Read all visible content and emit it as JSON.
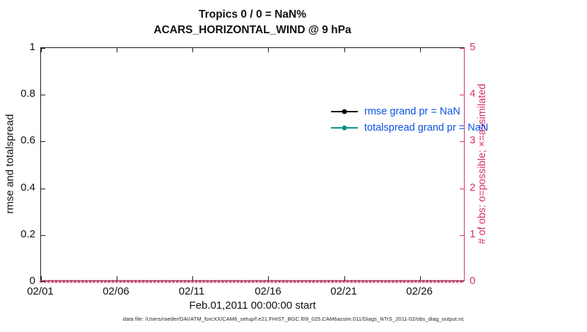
{
  "chart_data": {
    "type": "line",
    "title": "Tropics 0 / 0 = NaN%",
    "subtitle": "ACARS_HORIZONTAL_WIND @ 9 hPa",
    "xlabel": "Feb.01,2011 00:00:00 start",
    "ylabel_left": "rmse and totalspread",
    "ylabel_right": "# of obs: o=possible; ×=assimilated",
    "x_ticks": [
      "02/01",
      "02/06",
      "02/11",
      "02/16",
      "02/21",
      "02/26"
    ],
    "x_range_days": 28,
    "x_tick_interval_days": 5,
    "y_ticks_left": [
      "0",
      "0.2",
      "0.4",
      "0.6",
      "0.8",
      "1"
    ],
    "ylim_left": [
      0,
      1
    ],
    "y_ticks_right": [
      "0",
      "1",
      "2",
      "3",
      "4",
      "5"
    ],
    "ylim_right": [
      0,
      5
    ],
    "grid": false,
    "legend_position": "upper-center-right, no box",
    "series": [
      {
        "name": "rmse",
        "grand_mean": "NaN",
        "color": "#000000",
        "values": []
      },
      {
        "name": "totalspread",
        "grand_mean": "NaN",
        "color": "#0d9488",
        "values": []
      }
    ],
    "obs_markers": {
      "description": "observation counts plotted on right axis; possible (o) and assimilated (x) all equal 0 along the baseline",
      "value": 0,
      "count": 112,
      "glyph": "*",
      "color": "#d6336c"
    }
  },
  "legend": {
    "items": [
      {
        "label": "rmse grand pr = NaN",
        "line_color": "#000000"
      },
      {
        "label": "totalspread grand pr = NaN",
        "line_color": "#0d9488"
      }
    ],
    "text_color": "#0b52e0"
  },
  "footer": {
    "text": "data file: /Users/raeder/DAI/ATM_forcXX/CAM6_setup/f.e21.FHIST_BGC.f09_025.CAM6assim.011/Diags_NTrS_2011-02/obs_diag_output.nc"
  },
  "colors": {
    "axis": "#1a1a1a",
    "right_axis": "#d6336c",
    "legend_text": "#0b52e0",
    "teal": "#0d9488"
  }
}
